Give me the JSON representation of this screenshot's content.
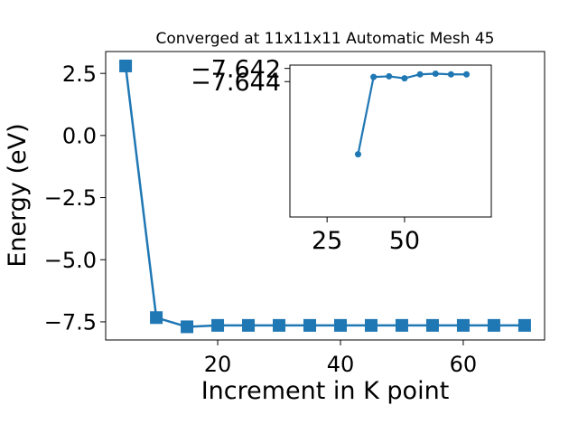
{
  "chart_data": [
    {
      "type": "line",
      "title": "Converged at 11x11x11 Automatic Mesh 45",
      "xlabel": "Increment in K point",
      "ylabel": "Energy (eV)",
      "xlim": [
        1.75,
        73.25
      ],
      "ylim": [
        -8.23,
        3.38
      ],
      "xticks": [
        20,
        40,
        60
      ],
      "xtick_labels": [
        "20",
        "40",
        "60"
      ],
      "yticks": [
        2.5,
        0.0,
        -2.5,
        -5.0,
        -7.5
      ],
      "ytick_labels": [
        "2.5",
        "0.0",
        "−2.5",
        "−5.0",
        "−7.5"
      ],
      "marker": "square",
      "color": "#1f77b4",
      "grid": false,
      "x": [
        5,
        10,
        15,
        20,
        25,
        30,
        35,
        40,
        45,
        50,
        55,
        60,
        65,
        70
      ],
      "y": [
        2.8,
        -7.33,
        -7.7,
        -7.6428,
        -7.643,
        -7.6428,
        -7.6433,
        -7.6432,
        -7.6428,
        -7.6424,
        -7.643,
        -7.6428,
        -7.6428,
        -7.6428
      ]
    },
    {
      "type": "line",
      "title": "",
      "inset": true,
      "xlim": [
        13,
        78
      ],
      "ylim": [
        -7.6645,
        -7.6415
      ],
      "xticks": [
        25,
        50
      ],
      "xtick_labels": [
        "25",
        "50"
      ],
      "yticks": [
        -7.644,
        -7.642
      ],
      "ytick_labels": [
        "−7.644",
        "−7.642"
      ],
      "marker": "circle",
      "color": "#1f77b4",
      "grid": false,
      "x": [
        35,
        40,
        45,
        50,
        55,
        60,
        65,
        70
      ],
      "y": [
        -7.655,
        -7.6433,
        -7.6432,
        -7.6435,
        -7.6429,
        -7.6428,
        -7.6429,
        -7.6429
      ]
    }
  ]
}
